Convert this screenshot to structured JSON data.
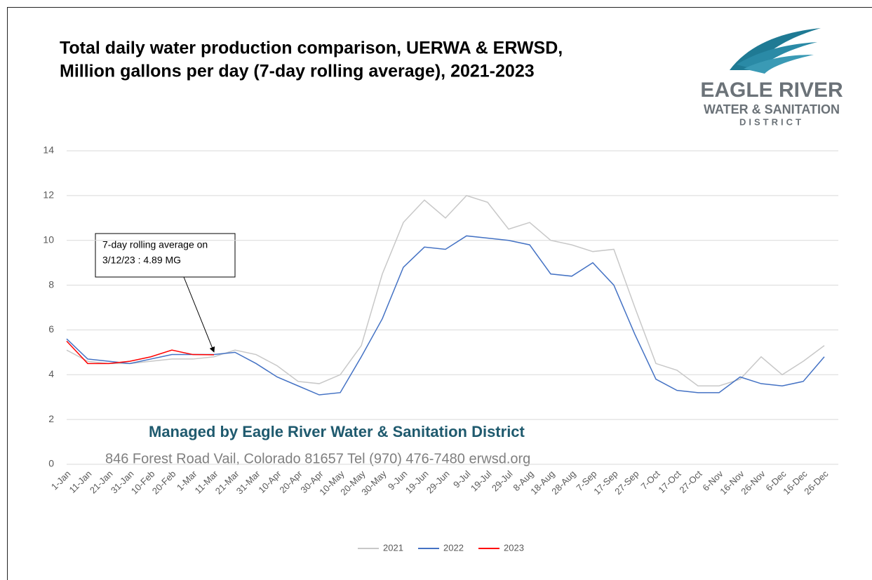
{
  "chart_data": {
    "type": "line",
    "title": [
      "Total daily water production comparison, UERWA & ERWSD,",
      "Million gallons per day (7-day rolling average), 2021-2023"
    ],
    "logo": [
      "EAGLE RIVER",
      "WATER & SANITATION",
      "DISTRICT"
    ],
    "annotation": [
      "7-day rolling average on",
      "3/12/23 : 4.89 MG"
    ],
    "footer": [
      "Managed by Eagle River Water & Sanitation District",
      "846 Forest Road  Vail, Colorado 81657  Tel (970) 476-7480  erwsd.org"
    ],
    "categories": [
      "1-Jan",
      "11-Jan",
      "21-Jan",
      "31-Jan",
      "10-Feb",
      "20-Feb",
      "1-Mar",
      "11-Mar",
      "21-Mar",
      "31-Mar",
      "10-Apr",
      "20-Apr",
      "30-Apr",
      "10-May",
      "20-May",
      "30-May",
      "9-Jun",
      "19-Jun",
      "29-Jun",
      "9-Jul",
      "19-Jul",
      "29-Jul",
      "8-Aug",
      "18-Aug",
      "28-Aug",
      "7-Sep",
      "17-Sep",
      "27-Sep",
      "7-Oct",
      "17-Oct",
      "27-Oct",
      "6-Nov",
      "16-Nov",
      "26-Nov",
      "6-Dec",
      "16-Dec",
      "26-Dec"
    ],
    "series": [
      {
        "name": "2021",
        "color": "#c8c8c8",
        "values": [
          5.1,
          4.6,
          4.5,
          4.5,
          4.6,
          4.7,
          4.7,
          4.8,
          5.1,
          4.9,
          4.4,
          3.7,
          3.6,
          4.0,
          5.3,
          8.5,
          10.8,
          11.8,
          11.0,
          12.0,
          11.7,
          10.5,
          10.8,
          10.0,
          9.8,
          9.5,
          9.6,
          7.0,
          4.5,
          4.2,
          3.5,
          3.5,
          3.8,
          4.8,
          4.0,
          4.6,
          5.3
        ]
      },
      {
        "name": "2022",
        "color": "#4472c4",
        "values": [
          5.6,
          4.7,
          4.6,
          4.5,
          4.7,
          4.9,
          4.9,
          4.9,
          5.0,
          4.5,
          3.9,
          3.5,
          3.1,
          3.2,
          4.8,
          6.5,
          8.8,
          9.7,
          9.6,
          10.2,
          10.1,
          10.0,
          9.8,
          8.5,
          8.4,
          9.0,
          8.0,
          5.8,
          3.8,
          3.3,
          3.2,
          3.2,
          3.9,
          3.6,
          3.5,
          3.7,
          4.8
        ]
      },
      {
        "name": "2023",
        "color": "#ff0000",
        "values": [
          5.5,
          4.5,
          4.5,
          4.6,
          4.8,
          5.1,
          4.9,
          4.89,
          null,
          null,
          null,
          null,
          null,
          null,
          null,
          null,
          null,
          null,
          null,
          null,
          null,
          null,
          null,
          null,
          null,
          null,
          null,
          null,
          null,
          null,
          null,
          null,
          null,
          null,
          null,
          null,
          null
        ]
      }
    ],
    "ylim": [
      0,
      14
    ],
    "yticks": [
      0,
      2,
      4,
      6,
      8,
      10,
      12,
      14
    ],
    "grid": true,
    "legend": "bottom"
  }
}
